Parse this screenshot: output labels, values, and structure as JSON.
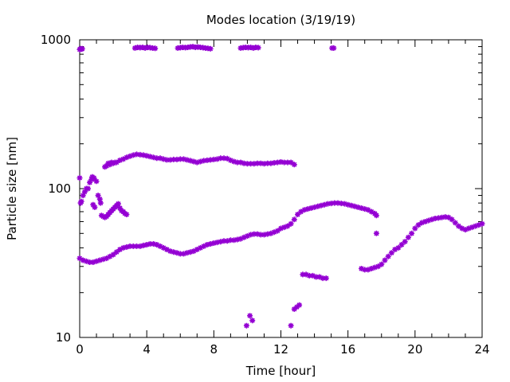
{
  "chart_data": {
    "type": "scatter",
    "title": "Modes location (3/19/19)",
    "xlabel": "Time [hour]",
    "ylabel": "Particle size [nm]",
    "xlim": [
      0,
      24
    ],
    "ylim": [
      10,
      1000
    ],
    "yscale": "log",
    "xticks": [
      0,
      4,
      8,
      12,
      16,
      20,
      24
    ],
    "yticks": [
      10,
      100,
      1000
    ],
    "grid": false,
    "marker_color": "#9400D3",
    "series": [
      {
        "x": [
          0.0,
          0.05,
          0.1,
          0.15,
          3.3,
          3.45,
          3.6,
          3.75,
          3.9,
          4.05,
          4.2,
          4.35,
          4.5,
          5.85,
          6.0,
          6.15,
          6.3,
          6.45,
          6.6,
          6.75,
          6.9,
          7.05,
          7.2,
          7.35,
          7.5,
          7.65,
          7.8,
          9.6,
          9.75,
          9.9,
          10.05,
          10.2,
          10.35,
          10.5,
          10.65,
          15.05,
          15.15
        ],
        "y": [
          860,
          870,
          865,
          870,
          880,
          890,
          885,
          890,
          880,
          890,
          885,
          880,
          875,
          880,
          885,
          890,
          885,
          890,
          895,
          900,
          890,
          895,
          890,
          885,
          880,
          875,
          870,
          880,
          885,
          890,
          885,
          890,
          880,
          890,
          885,
          880,
          880
        ]
      },
      {
        "x": [
          0.0,
          0.05,
          0.1,
          0.2,
          0.3,
          0.4,
          0.5,
          0.6,
          0.7,
          0.75,
          0.85,
          1.0,
          0.8,
          0.9,
          1.1,
          1.2,
          1.25,
          1.3,
          1.4,
          1.5,
          1.6,
          1.7,
          1.8,
          1.9,
          2.0,
          2.1,
          2.2,
          2.3,
          2.4,
          2.5,
          2.6,
          2.7,
          2.8,
          1.5,
          1.6,
          1.7,
          1.8,
          1.9,
          2.0,
          2.1,
          2.2,
          2.4,
          2.6,
          2.8,
          3.0,
          3.2,
          3.4,
          3.6,
          3.8,
          4.0,
          4.2,
          4.4,
          4.6,
          4.8,
          5.0,
          5.2,
          5.4,
          5.6,
          5.8,
          6.0,
          6.2,
          6.4,
          6.6,
          6.8,
          7.0,
          7.2,
          7.4,
          7.6,
          7.8,
          8.0,
          8.2,
          8.4,
          8.6,
          8.8,
          9.0,
          9.2,
          9.4,
          9.6,
          9.8,
          10.0,
          10.2,
          10.4,
          10.6,
          10.8,
          11.0,
          11.2,
          11.4,
          11.6,
          11.8,
          12.0,
          12.2,
          12.4,
          12.6,
          12.8
        ],
        "y": [
          118,
          80,
          82,
          90,
          95,
          100,
          100,
          110,
          115,
          120,
          118,
          112,
          78,
          75,
          90,
          85,
          80,
          66,
          65,
          64,
          65,
          67,
          69,
          71,
          73,
          75,
          77,
          79,
          74,
          71,
          70,
          68,
          67,
          140,
          142,
          148,
          145,
          150,
          148,
          150,
          150,
          155,
          158,
          162,
          165,
          168,
          170,
          169,
          168,
          166,
          164,
          162,
          160,
          160,
          158,
          156,
          156,
          157,
          157,
          158,
          158,
          156,
          154,
          152,
          150,
          152,
          154,
          155,
          156,
          157,
          158,
          160,
          160,
          159,
          155,
          152,
          150,
          150,
          148,
          147,
          147,
          147,
          148,
          148,
          147,
          148,
          148,
          149,
          150,
          151,
          150,
          150,
          150,
          145
        ]
      },
      {
        "x": [
          0.0,
          0.2,
          0.4,
          0.6,
          0.8,
          1.0,
          1.2,
          1.4,
          1.6,
          1.8,
          2.0,
          2.2,
          2.4,
          2.6,
          2.8,
          3.0,
          3.2,
          3.4,
          3.6,
          3.8,
          4.0,
          4.2,
          4.4,
          4.6,
          4.8,
          5.0,
          5.2,
          5.4,
          5.6,
          5.8,
          6.0,
          6.2,
          6.4,
          6.6,
          6.8,
          7.0,
          7.2,
          7.4,
          7.6,
          7.8,
          8.0,
          8.2,
          8.4,
          8.6,
          8.8,
          9.0,
          9.2,
          9.4,
          9.6,
          9.8,
          10.0,
          10.2,
          10.4,
          10.6,
          10.8,
          11.0,
          11.2,
          11.4,
          11.6,
          11.8,
          12.0,
          12.2,
          12.4,
          12.6,
          12.8,
          13.0,
          13.2,
          13.4,
          13.6,
          13.8,
          14.0,
          14.2,
          14.4,
          14.6,
          14.8,
          15.0,
          15.2,
          15.4,
          15.6,
          15.8,
          16.0,
          16.2,
          16.4,
          16.6,
          16.8,
          17.0,
          17.2,
          17.4,
          17.6,
          17.7,
          16.8,
          17.0,
          17.2,
          17.4,
          17.6,
          17.8,
          18.0,
          18.2,
          18.4,
          18.6,
          18.8,
          19.0,
          19.2,
          19.4,
          19.6,
          19.8,
          20.0,
          20.2,
          20.4,
          20.6,
          20.8,
          21.0,
          21.2,
          21.4,
          21.6,
          21.8,
          22.0,
          22.2,
          22.4,
          22.6,
          22.8,
          23.0,
          23.2,
          23.4,
          23.6,
          23.8,
          24.0
        ],
        "y": [
          34,
          33,
          32.5,
          32,
          32,
          32.5,
          33,
          33.5,
          34,
          35,
          36,
          37.5,
          39,
          40,
          40.5,
          41,
          41,
          41,
          41,
          41.5,
          42,
          42.5,
          42.5,
          42,
          41,
          40,
          39,
          38,
          37.5,
          37,
          36.5,
          36.5,
          37,
          37.5,
          38,
          39,
          40,
          41,
          42,
          42.5,
          43,
          43.5,
          44,
          44.5,
          44.5,
          45,
          45,
          45.5,
          46,
          47,
          48,
          49,
          49.5,
          49.5,
          49,
          49,
          49.5,
          50,
          51,
          52,
          54,
          55,
          56,
          58,
          62,
          67,
          70,
          72,
          73,
          74,
          75,
          76,
          77,
          78,
          79,
          79.5,
          80,
          80,
          79.5,
          79,
          78,
          77,
          76,
          75,
          74,
          73,
          72,
          70,
          68,
          66,
          29,
          28.5,
          28.5,
          29,
          29.5,
          30,
          31,
          33,
          35,
          37,
          39,
          40,
          42,
          44,
          47,
          50,
          54,
          57,
          59,
          60,
          61,
          62,
          63,
          63.5,
          64,
          64.5,
          64,
          62,
          59,
          56,
          54,
          53,
          54,
          55,
          56,
          57,
          58
        ]
      },
      {
        "x": [
          17.7,
          9.95,
          10.15,
          10.3,
          12.6,
          12.8,
          12.95,
          13.1,
          13.3,
          13.5,
          13.7,
          13.9,
          14.1,
          14.3,
          14.5,
          14.7
        ],
        "y": [
          50,
          12,
          14,
          13,
          12,
          15.5,
          16,
          16.5,
          26.5,
          26.5,
          26,
          26,
          25.5,
          25.5,
          25,
          25
        ]
      }
    ]
  }
}
